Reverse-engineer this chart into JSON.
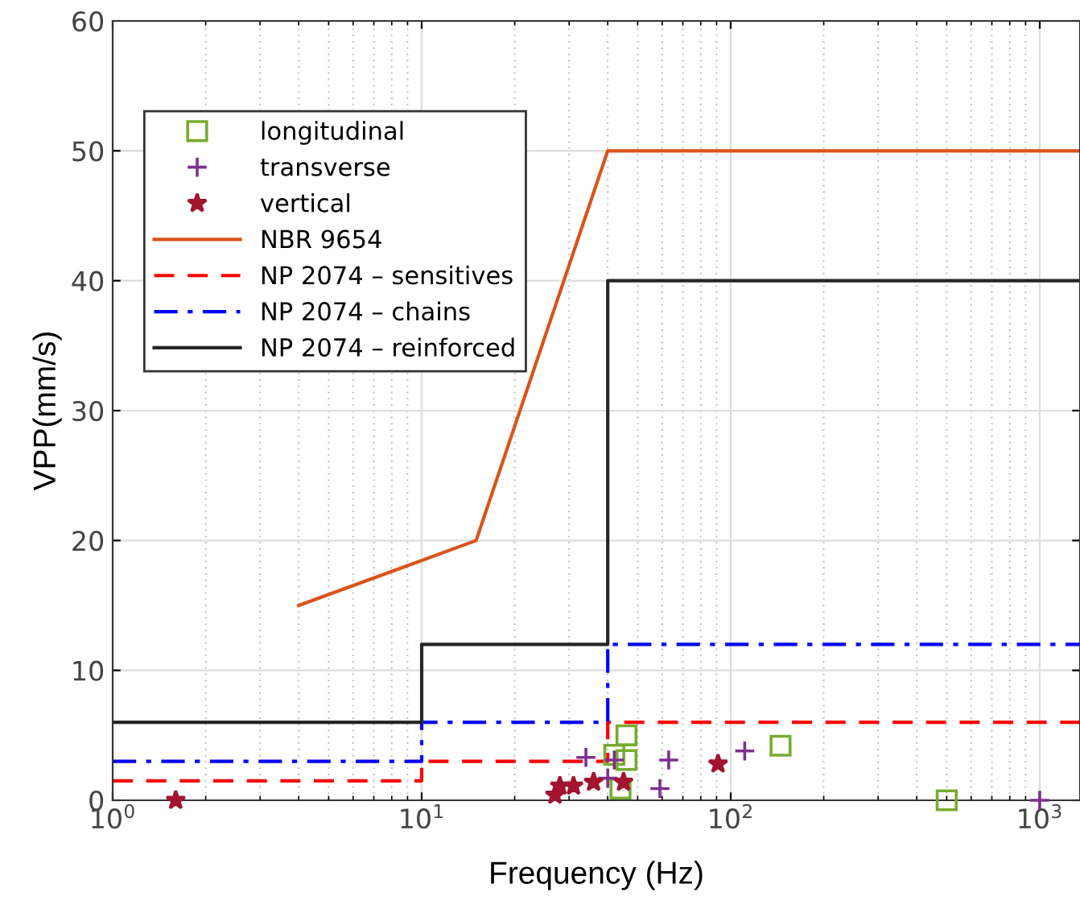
{
  "chart_data": {
    "type": "scatter",
    "xlabel": "Frequency (Hz)",
    "ylabel": "VPP(mm/s)",
    "log": "x",
    "xlim": [
      1,
      1350
    ],
    "ylim": [
      0,
      60
    ],
    "xticks": [
      {
        "value": 1,
        "label": "10$^{0}$"
      },
      {
        "value": 10,
        "label": "10$^{1}$"
      },
      {
        "value": 100,
        "label": "10$^{2}$"
      },
      {
        "value": 1000,
        "label": "10$^{3}$"
      }
    ],
    "yticks": [
      0,
      10,
      20,
      30,
      40,
      50,
      60
    ],
    "grid": true,
    "legend": "top left",
    "series": [
      {
        "name": "longitudinal",
        "marker": "square",
        "color": "#77ac30",
        "x": [
          46,
          42,
          46,
          44,
          145,
          500
        ],
        "values": [
          5.0,
          3.5,
          3.1,
          0.9,
          4.2,
          0
        ]
      },
      {
        "name": "transverse",
        "marker": "cross",
        "color": "#7e2f8e",
        "x": [
          34,
          42,
          40,
          63,
          59,
          111,
          1000
        ],
        "values": [
          3.3,
          3.1,
          1.7,
          3.1,
          0.9,
          3.8,
          0
        ]
      },
      {
        "name": "vertical",
        "marker": "star",
        "color": "#a2142f",
        "x": [
          1.6,
          27,
          28,
          31,
          36,
          45,
          91
        ],
        "values": [
          0,
          0.4,
          1.1,
          1.1,
          1.4,
          1.4,
          2.8
        ]
      },
      {
        "name": "NBR 9654",
        "type": "line",
        "line_style": "solid",
        "color": "#d95319",
        "x": [
          4,
          15,
          40,
          1350
        ],
        "values": [
          15,
          20,
          50,
          50
        ]
      },
      {
        "name": "NP 2074 – sensitives",
        "type": "line",
        "line_style": "dashed",
        "color": "#ff0000",
        "x": [
          1,
          10,
          10,
          40,
          40,
          1350
        ],
        "values": [
          1.5,
          1.5,
          3,
          3,
          6,
          6
        ]
      },
      {
        "name": "NP 2074 – chains",
        "type": "line",
        "line_style": "dashdot",
        "color": "#0000ff",
        "x": [
          1,
          10,
          10,
          40,
          40,
          1350
        ],
        "values": [
          3,
          3,
          6,
          6,
          12,
          12
        ]
      },
      {
        "name": "NP 2074 – reinforced",
        "type": "line",
        "line_style": "solid",
        "color": "#262626",
        "x": [
          1,
          10,
          10,
          40,
          40,
          1350
        ],
        "values": [
          6,
          6,
          12,
          12,
          40,
          40
        ]
      }
    ]
  }
}
